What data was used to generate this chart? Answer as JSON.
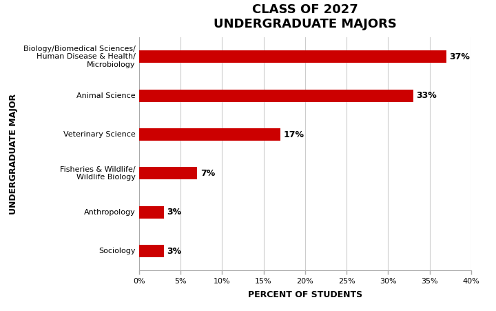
{
  "title_line1": "CLASS OF 2027",
  "title_line2": "UNDERGRADUATE MAJORS",
  "categories": [
    "Biology/Biomedical Sciences/\nHuman Disease & Health/\nMicrobiology",
    "Animal Science",
    "Veterinary Science",
    "Fisheries & Wildlife/\nWildlife Biology",
    "Anthropology",
    "Sociology"
  ],
  "values": [
    37,
    33,
    17,
    7,
    3,
    3
  ],
  "bar_color": "#cc0000",
  "xlabel": "PERCENT OF STUDENTS",
  "ylabel": "UNDERGRADUATE MAJOR",
  "xlim": [
    0,
    40
  ],
  "xticks": [
    0,
    5,
    10,
    15,
    20,
    25,
    30,
    35,
    40
  ],
  "xtick_labels": [
    "0%",
    "5%",
    "10%",
    "15%",
    "20%",
    "25%",
    "30%",
    "35%",
    "40%"
  ],
  "background_color": "#ffffff",
  "bar_label_fontsize": 9,
  "axis_label_fontsize": 9,
  "ylabel_fontsize": 9,
  "title_fontsize": 13,
  "ytick_fontsize": 8,
  "xtick_fontsize": 8,
  "bar_height": 0.32
}
